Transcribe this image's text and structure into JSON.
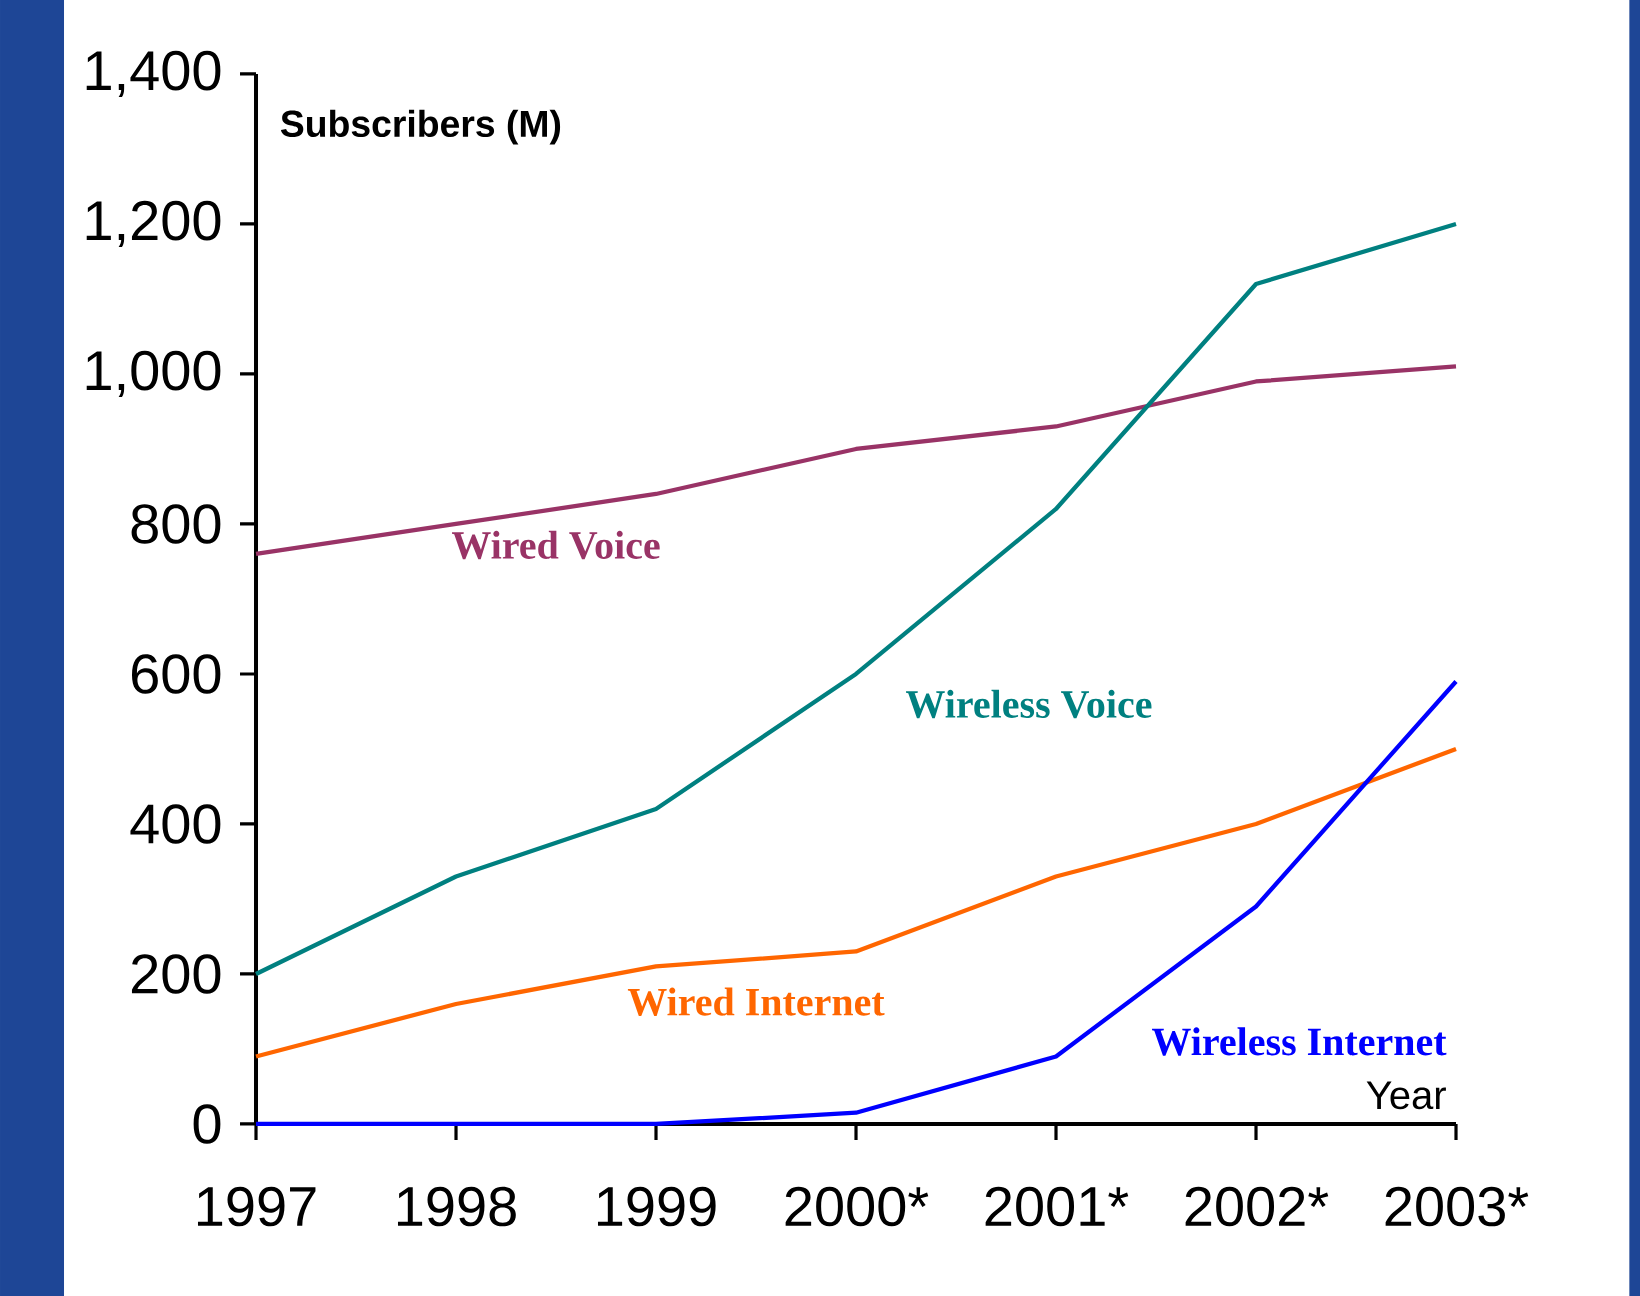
{
  "chart_data": {
    "type": "line",
    "xlabel": "Year",
    "ylabel": "Subscribers (M)",
    "categories": [
      "1997",
      "1998",
      "1999",
      "2000*",
      "2001*",
      "2002*",
      "2003*"
    ],
    "series": [
      {
        "name": "Wired Voice",
        "color": "#993366",
        "values": [
          760,
          800,
          840,
          900,
          930,
          990,
          1010
        ]
      },
      {
        "name": "Wireless Voice",
        "color": "#008080",
        "values": [
          200,
          330,
          420,
          600,
          820,
          1120,
          1200
        ]
      },
      {
        "name": "Wired Internet",
        "color": "#ff6600",
        "values": [
          90,
          160,
          210,
          230,
          330,
          400,
          500
        ]
      },
      {
        "name": "Wireless Internet",
        "color": "#0000ff",
        "values": [
          0,
          0,
          0,
          15,
          90,
          290,
          590
        ]
      }
    ],
    "ylim": [
      0,
      1400
    ],
    "yticks": [
      {
        "value": 0,
        "label": "0"
      },
      {
        "value": 200,
        "label": "200"
      },
      {
        "value": 400,
        "label": "400"
      },
      {
        "value": 600,
        "label": "600"
      },
      {
        "value": 800,
        "label": "800"
      },
      {
        "value": 1000,
        "label": "1,000"
      },
      {
        "value": 1200,
        "label": "1,200"
      },
      {
        "value": 1400,
        "label": "1,400"
      }
    ],
    "grid": false,
    "legend": false,
    "marker": "none",
    "line_style": "solid"
  }
}
